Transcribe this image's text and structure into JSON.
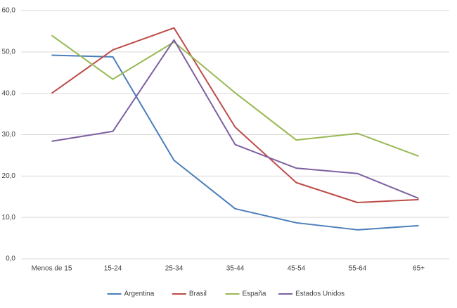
{
  "chart_data": {
    "type": "line",
    "categories": [
      "Menos de 15",
      "15-24",
      "25-34",
      "35-44",
      "45-54",
      "55-64",
      "65+"
    ],
    "series": [
      {
        "name": "Argentina",
        "color": "#4a7ebb",
        "values": [
          49.2,
          48.8,
          23.8,
          12.1,
          8.7,
          7.0,
          8.0
        ]
      },
      {
        "name": "Brasil",
        "color": "#be4b48",
        "values": [
          40.0,
          50.5,
          55.8,
          31.8,
          18.4,
          13.6,
          14.3
        ]
      },
      {
        "name": "España",
        "color": "#98b954",
        "values": [
          54.0,
          43.4,
          52.4,
          40.1,
          28.7,
          30.3,
          24.8
        ]
      },
      {
        "name": "Estados Unidos",
        "color": "#7d60a0",
        "values": [
          28.4,
          30.8,
          52.9,
          27.6,
          21.9,
          20.6,
          14.6
        ]
      }
    ],
    "ylim": [
      0,
      60
    ],
    "yticks": [
      {
        "value": 0,
        "label": "0,0"
      },
      {
        "value": 10,
        "label": "10,0"
      },
      {
        "value": 20,
        "label": "20,0"
      },
      {
        "value": 30,
        "label": "30,0"
      },
      {
        "value": 40,
        "label": "40,0"
      },
      {
        "value": 50,
        "label": "50,0"
      },
      {
        "value": 60,
        "label": "60,0"
      }
    ],
    "grid": true
  }
}
